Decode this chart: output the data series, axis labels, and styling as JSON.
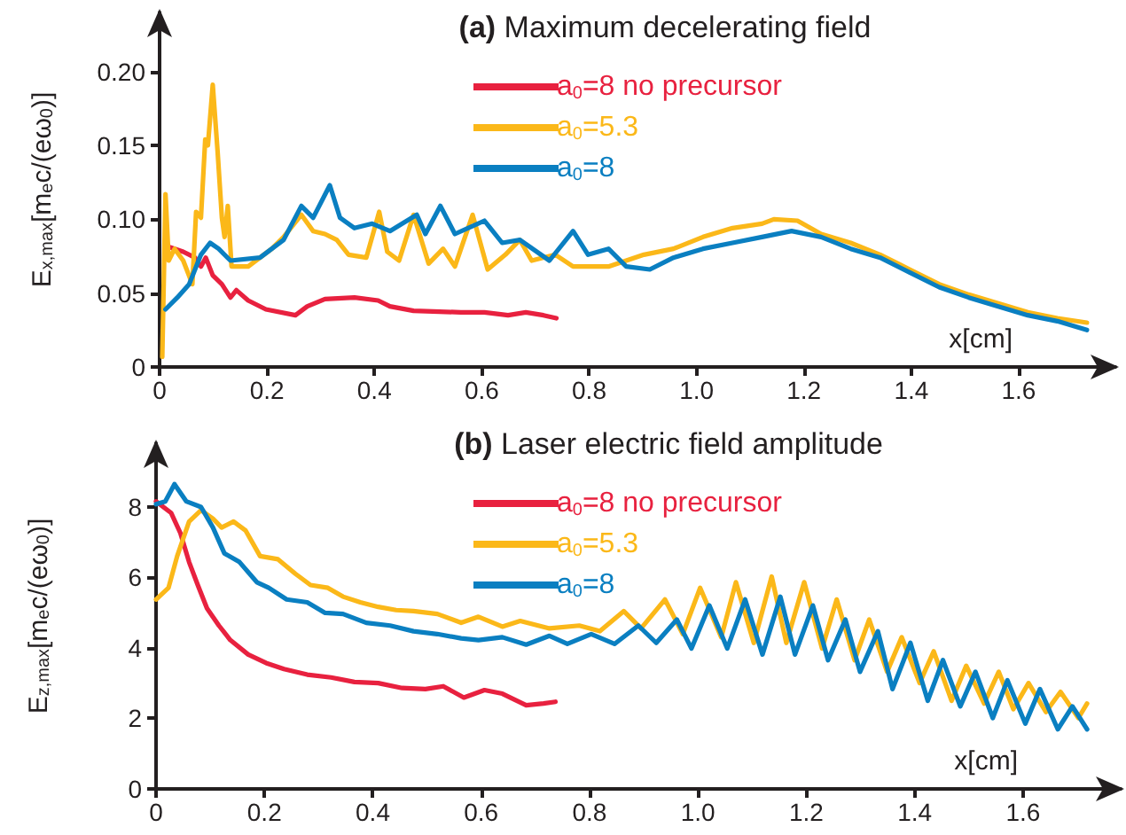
{
  "chart_data": [
    {
      "type": "line",
      "title": "(a) Maximum decelerating field",
      "xlabel": "x[cm]",
      "ylabel": "E$_{x,max}$[m$_{e}$c/(eω$_{0}$)]",
      "xlim": [
        0,
        1.78
      ],
      "xticks": [
        0,
        0.2,
        0.4,
        0.6,
        0.8,
        {
          "value": 1,
          "label": "1.0"
        },
        1.2,
        1.4,
        1.6
      ],
      "ylim": [
        0,
        0.24
      ],
      "yticks": [
        0,
        0.05,
        {
          "value": 0.1,
          "label": "0.10"
        },
        0.15,
        {
          "value": 0.2,
          "label": "0.20"
        }
      ],
      "legend": "top",
      "grid": false,
      "marker": "none",
      "line_style": "solid",
      "series": [
        {
          "name": "a$_{0}$=8 no precursor",
          "color": "#e8213f",
          "x": [
            0.011,
            0.044,
            0.066,
            0.077,
            0.086,
            0.099,
            0.116,
            0.132,
            0.143,
            0.165,
            0.198,
            0.253,
            0.275,
            0.308,
            0.363,
            0.407,
            0.429,
            0.473,
            0.561,
            0.605,
            0.649,
            0.682,
            0.715,
            0.739
          ],
          "values": [
            0.082,
            0.078,
            0.074,
            0.068,
            0.074,
            0.062,
            0.056,
            0.047,
            0.052,
            0.045,
            0.039,
            0.035,
            0.041,
            0.046,
            0.047,
            0.045,
            0.041,
            0.038,
            0.037,
            0.037,
            0.035,
            0.037,
            0.035,
            0.033
          ]
        },
        {
          "name": "a$_{0}$=5.3",
          "color": "#fbb819",
          "x": [
            0.005,
            0.011,
            0.017,
            0.028,
            0.044,
            0.061,
            0.068,
            0.077,
            0.085,
            0.09,
            0.099,
            0.108,
            0.116,
            0.121,
            0.127,
            0.134,
            0.165,
            0.209,
            0.231,
            0.264,
            0.286,
            0.308,
            0.33,
            0.352,
            0.385,
            0.409,
            0.424,
            0.446,
            0.473,
            0.501,
            0.528,
            0.55,
            0.583,
            0.611,
            0.644,
            0.671,
            0.693,
            0.737,
            0.77,
            0.836,
            0.902,
            0.957,
            1.012,
            1.067,
            1.122,
            1.144,
            1.188,
            1.232,
            1.287,
            1.342,
            1.397,
            1.452,
            1.507,
            1.562,
            1.617,
            1.672,
            1.727
          ],
          "values": [
            0.007,
            0.117,
            0.072,
            0.08,
            0.072,
            0.056,
            0.105,
            0.101,
            0.154,
            0.15,
            0.191,
            0.146,
            0.101,
            0.088,
            0.109,
            0.068,
            0.068,
            0.08,
            0.088,
            0.103,
            0.092,
            0.09,
            0.086,
            0.076,
            0.074,
            0.105,
            0.078,
            0.072,
            0.103,
            0.07,
            0.08,
            0.068,
            0.103,
            0.066,
            0.076,
            0.086,
            0.072,
            0.076,
            0.068,
            0.068,
            0.076,
            0.08,
            0.088,
            0.094,
            0.097,
            0.1,
            0.099,
            0.09,
            0.084,
            0.076,
            0.066,
            0.056,
            0.049,
            0.043,
            0.037,
            0.033,
            0.03
          ]
        },
        {
          "name": "a$_{0}$=8",
          "color": "#0a7fc1",
          "x": [
            0.011,
            0.033,
            0.055,
            0.077,
            0.094,
            0.11,
            0.132,
            0.187,
            0.231,
            0.264,
            0.286,
            0.317,
            0.336,
            0.363,
            0.396,
            0.429,
            0.479,
            0.495,
            0.523,
            0.55,
            0.605,
            0.638,
            0.671,
            0.726,
            0.77,
            0.798,
            0.836,
            0.869,
            0.913,
            0.957,
            1.012,
            1.067,
            1.122,
            1.177,
            1.232,
            1.287,
            1.342,
            1.397,
            1.452,
            1.507,
            1.562,
            1.617,
            1.672,
            1.727
          ],
          "values": [
            0.039,
            0.047,
            0.056,
            0.076,
            0.084,
            0.08,
            0.072,
            0.074,
            0.086,
            0.109,
            0.101,
            0.123,
            0.101,
            0.094,
            0.097,
            0.092,
            0.103,
            0.09,
            0.109,
            0.09,
            0.099,
            0.084,
            0.086,
            0.072,
            0.092,
            0.076,
            0.08,
            0.068,
            0.066,
            0.074,
            0.08,
            0.084,
            0.088,
            0.092,
            0.088,
            0.08,
            0.074,
            0.064,
            0.054,
            0.047,
            0.041,
            0.035,
            0.031,
            0.025
          ]
        }
      ]
    },
    {
      "type": "line",
      "title": "(b) Laser electric field amplitude",
      "xlabel": "x[cm]",
      "ylabel": "E$_{z,max}$[m$_{e}$c/(eω$_{0}$)]",
      "xlim": [
        0,
        1.78
      ],
      "xticks": [
        0,
        0.2,
        0.4,
        0.6,
        0.8,
        {
          "value": 1,
          "label": "1.0"
        },
        1.2,
        1.4,
        1.6
      ],
      "ylim": [
        0,
        9.8
      ],
      "yticks": [
        0,
        2,
        4,
        6,
        8
      ],
      "legend": "top",
      "grid": false,
      "marker": "none",
      "line_style": "solid",
      "series": [
        {
          "name": "a$_{0}$=8 no precursor",
          "color": "#e8213f",
          "x": [
            0,
            0.028,
            0.045,
            0.061,
            0.077,
            0.094,
            0.116,
            0.137,
            0.17,
            0.203,
            0.236,
            0.279,
            0.323,
            0.366,
            0.41,
            0.454,
            0.497,
            0.53,
            0.568,
            0.606,
            0.639,
            0.683,
            0.715,
            0.737
          ],
          "values": [
            8.15,
            7.82,
            7.25,
            6.43,
            5.78,
            5.12,
            4.63,
            4.22,
            3.81,
            3.57,
            3.4,
            3.24,
            3.16,
            3.03,
            3,
            2.86,
            2.83,
            2.91,
            2.59,
            2.8,
            2.7,
            2.37,
            2.42,
            2.47
          ]
        },
        {
          "name": "a$_{0}$=5.3",
          "color": "#fbb819",
          "x": [
            0,
            0.023,
            0.039,
            0.061,
            0.083,
            0.105,
            0.121,
            0.143,
            0.165,
            0.192,
            0.225,
            0.257,
            0.285,
            0.317,
            0.345,
            0.377,
            0.41,
            0.443,
            0.475,
            0.519,
            0.563,
            0.595,
            0.639,
            0.672,
            0.726,
            0.781,
            0.819,
            0.863,
            0.895,
            0.939,
            0.972,
            1.004,
            1.043,
            1.07,
            1.103,
            1.136,
            1.163,
            1.196,
            1.229,
            1.256,
            1.289,
            1.316,
            1.349,
            1.376,
            1.409,
            1.435,
            1.468,
            1.495,
            1.528,
            1.555,
            1.582,
            1.61,
            1.642,
            1.669,
            1.702,
            1.718
          ],
          "values": [
            5.37,
            5.7,
            6.6,
            7.58,
            7.9,
            7.66,
            7.41,
            7.58,
            7.33,
            6.6,
            6.51,
            6.1,
            5.78,
            5.7,
            5.45,
            5.29,
            5.16,
            5.07,
            5.04,
            4.96,
            4.71,
            4.88,
            4.6,
            4.76,
            4.55,
            4.63,
            4.47,
            5.04,
            4.55,
            5.37,
            4.39,
            5.7,
            4.3,
            5.86,
            4.14,
            6.02,
            4.14,
            5.86,
            3.98,
            5.37,
            3.65,
            4.8,
            3.32,
            4.3,
            3,
            3.9,
            2.5,
            3.49,
            2.42,
            3.32,
            2.26,
            3,
            2.18,
            2.75,
            2.01,
            2.42
          ]
        },
        {
          "name": "a$_{0}$=8",
          "color": "#0a7fc1",
          "x": [
            0,
            0.017,
            0.034,
            0.056,
            0.083,
            0.105,
            0.126,
            0.154,
            0.186,
            0.208,
            0.241,
            0.279,
            0.312,
            0.345,
            0.388,
            0.432,
            0.475,
            0.519,
            0.563,
            0.595,
            0.639,
            0.683,
            0.726,
            0.759,
            0.803,
            0.846,
            0.89,
            0.923,
            0.961,
            0.988,
            1.021,
            1.054,
            1.087,
            1.119,
            1.152,
            1.179,
            1.212,
            1.24,
            1.272,
            1.299,
            1.332,
            1.359,
            1.392,
            1.424,
            1.452,
            1.484,
            1.512,
            1.544,
            1.571,
            1.604,
            1.631,
            1.664,
            1.691,
            1.718
          ],
          "values": [
            8.07,
            8.15,
            8.64,
            8.15,
            7.99,
            7.41,
            6.68,
            6.43,
            5.86,
            5.7,
            5.37,
            5.29,
            4.99,
            4.96,
            4.71,
            4.63,
            4.47,
            4.39,
            4.27,
            4.22,
            4.3,
            4.09,
            4.34,
            4.11,
            4.39,
            4.11,
            4.63,
            4.14,
            4.8,
            3.98,
            5.2,
            3.98,
            5.37,
            3.81,
            5.45,
            3.81,
            5.2,
            3.65,
            4.8,
            3.32,
            4.47,
            2.83,
            4.14,
            2.5,
            3.65,
            2.34,
            3.32,
            2.01,
            3.08,
            1.85,
            2.83,
            1.69,
            2.34,
            1.69
          ]
        }
      ]
    }
  ]
}
